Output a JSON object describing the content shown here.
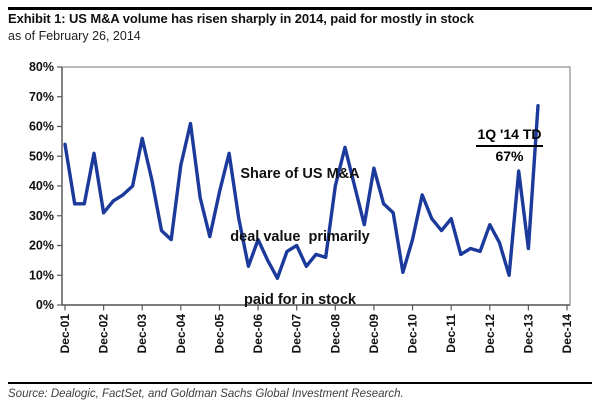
{
  "header": {
    "title": "Exhibit 1: US M&A volume has risen sharply in 2014, paid for mostly in stock",
    "subtitle": "as of February 26, 2014"
  },
  "footer": {
    "source": "Source: Dealogic, FactSet, and Goldman Sachs Global Investment Research."
  },
  "chart_data": {
    "type": "line",
    "series_label": "Share of US M&A deal value primarily paid for in stock",
    "frequency": "quarterly",
    "x_start": "Dec-01",
    "x_end": "1Q '14 TD",
    "x_tick_labels": [
      "Dec-01",
      "Dec-02",
      "Dec-03",
      "Dec-04",
      "Dec-05",
      "Dec-06",
      "Dec-07",
      "Dec-08",
      "Dec-09",
      "Dec-10",
      "Dec-11",
      "Dec-12",
      "Dec-13",
      "Dec-14"
    ],
    "y_tick_labels": [
      "0%",
      "10%",
      "20%",
      "30%",
      "40%",
      "50%",
      "60%",
      "70%",
      "80%"
    ],
    "ylim": [
      0,
      80
    ],
    "grid": false,
    "values": [
      54,
      34,
      34,
      51,
      31,
      35,
      37,
      40,
      56,
      42,
      25,
      22,
      47,
      61,
      36,
      23,
      38,
      51,
      29,
      13,
      22,
      15,
      9,
      18,
      20,
      13,
      17,
      16,
      40,
      53,
      40,
      27,
      46,
      34,
      31,
      11,
      22,
      37,
      29,
      25,
      29,
      17,
      19,
      18,
      27,
      21,
      10,
      45,
      19,
      67
    ],
    "annotation": {
      "lines": [
        "Share of US M&A",
        "deal value  primarily",
        "paid for in stock"
      ]
    },
    "callout": {
      "label": "1Q '14 TD",
      "value": "67%"
    },
    "line_color": "#1b3a9b",
    "axis_color": "#595959",
    "border_color": "#8c8c8c"
  }
}
